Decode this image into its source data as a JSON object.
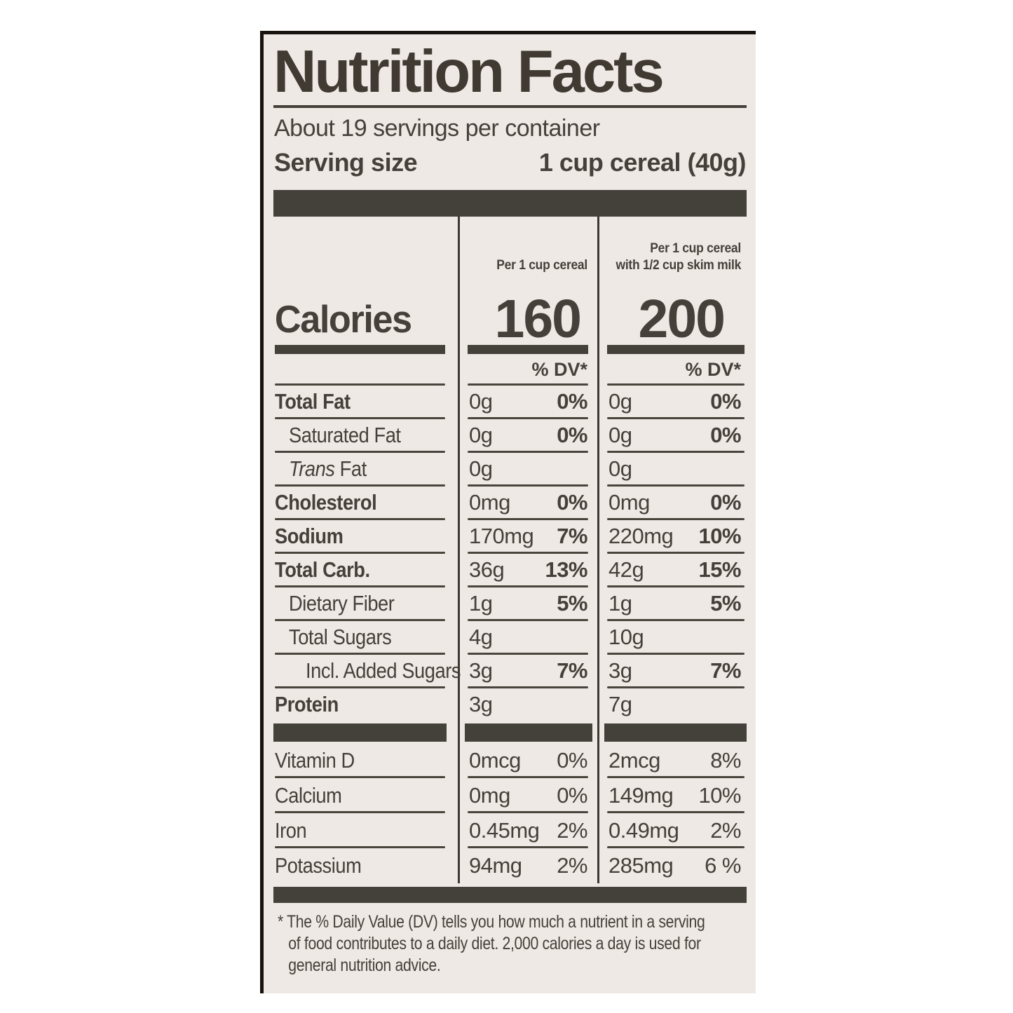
{
  "title": "Nutrition Facts",
  "servings_per_container": "About 19 servings per container",
  "serving_size_label": "Serving size",
  "serving_size_value": "1 cup cereal (40g)",
  "columns": {
    "cereal_header": "Per 1 cup cereal",
    "milk_header_line1": "Per 1 cup cereal",
    "milk_header_line2": "with 1/2 cup skim milk"
  },
  "calories": {
    "label": "Calories",
    "per_cereal": "160",
    "with_milk": "200"
  },
  "dv_header": "% DV*",
  "nutrients": [
    {
      "label": "Total Fat",
      "cereal_amount": "0g",
      "cereal_dv": "0%",
      "milk_amount": "0g",
      "milk_dv": "0%"
    },
    {
      "label": "Saturated Fat",
      "cereal_amount": "0g",
      "cereal_dv": "0%",
      "milk_amount": "0g",
      "milk_dv": "0%"
    },
    {
      "label_italic": "Trans",
      "label": " Fat",
      "cereal_amount": "0g",
      "cereal_dv": "",
      "milk_amount": "0g",
      "milk_dv": ""
    },
    {
      "label": "Cholesterol",
      "cereal_amount": "0mg",
      "cereal_dv": "0%",
      "milk_amount": "0mg",
      "milk_dv": "0%"
    },
    {
      "label": "Sodium",
      "cereal_amount": "170mg",
      "cereal_dv": "7%",
      "milk_amount": "220mg",
      "milk_dv": "10%"
    },
    {
      "label": "Total Carb.",
      "cereal_amount": "36g",
      "cereal_dv": "13%",
      "milk_amount": "42g",
      "milk_dv": "15%"
    },
    {
      "label": "Dietary Fiber",
      "cereal_amount": "1g",
      "cereal_dv": "5%",
      "milk_amount": "1g",
      "milk_dv": "5%"
    },
    {
      "label": "Total Sugars",
      "cereal_amount": "4g",
      "cereal_dv": "",
      "milk_amount": "10g",
      "milk_dv": ""
    },
    {
      "label": "Incl. Added Sugars",
      "cereal_amount": "3g",
      "cereal_dv": "7%",
      "milk_amount": "3g",
      "milk_dv": "7%"
    },
    {
      "label": "Protein",
      "cereal_amount": "3g",
      "cereal_dv": "",
      "milk_amount": "7g",
      "milk_dv": ""
    }
  ],
  "vitamins": [
    {
      "label": "Vitamin D",
      "cereal_amount": "0mcg",
      "cereal_dv": "0%",
      "milk_amount": "2mcg",
      "milk_dv": "8%"
    },
    {
      "label": "Calcium",
      "cereal_amount": "0mg",
      "cereal_dv": "0%",
      "milk_amount": "149mg",
      "milk_dv": "10%"
    },
    {
      "label": "Iron",
      "cereal_amount": "0.45mg",
      "cereal_dv": "2%",
      "milk_amount": "0.49mg",
      "milk_dv": "2%"
    },
    {
      "label": "Potassium",
      "cereal_amount": "94mg",
      "cereal_dv": "2%",
      "milk_amount": "285mg",
      "milk_dv": "6 %"
    }
  ],
  "footnote_lines": [
    "* The % Daily Value (DV) tells you how much a nutrient in a serving",
    "of food contributes to a daily diet. 2,000 calories a day is used for",
    "general nutrition advice."
  ],
  "colors": {
    "label_background": "#efe9e5",
    "text": "#46403a",
    "bars": "#44403a",
    "border": "#17130e"
  }
}
